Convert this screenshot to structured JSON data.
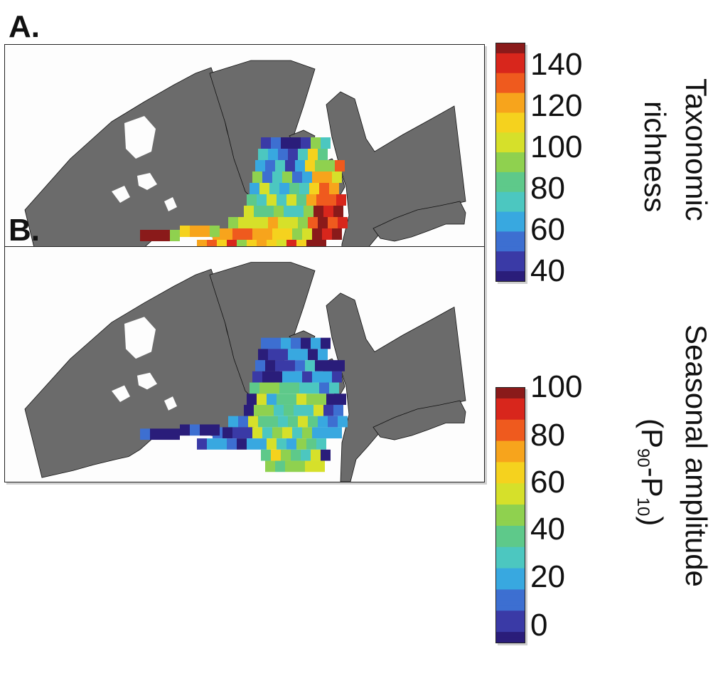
{
  "panels": [
    {
      "letter": "A.",
      "colorbar": {
        "title_line1": "Taxonomic",
        "title_line2": "richness",
        "ticks": [
          "140",
          "120",
          "100",
          "80",
          "60",
          "40"
        ],
        "range": [
          35,
          150
        ]
      }
    },
    {
      "letter": "B.",
      "colorbar": {
        "title_line1": "Seasonal amplitude",
        "title_line2_parts": [
          "(P",
          "90",
          "-P",
          "10",
          ")"
        ],
        "ticks": [
          "100",
          "80",
          "60",
          "40",
          "20",
          "0"
        ],
        "range": [
          0,
          105
        ]
      }
    }
  ],
  "colormap": [
    "#2a1d7a",
    "#3a3aa6",
    "#3d6fd1",
    "#38a8e0",
    "#4cc7c0",
    "#5ec98a",
    "#8fd14f",
    "#d6e02a",
    "#f5d21e",
    "#f7a41c",
    "#ef5a1e",
    "#d8261c",
    "#8a1a1a"
  ],
  "colors": {
    "land": "#6b6b6b",
    "ocean": "#fdfdfd",
    "coast": "#111111"
  },
  "legend_position": "right of each map"
}
